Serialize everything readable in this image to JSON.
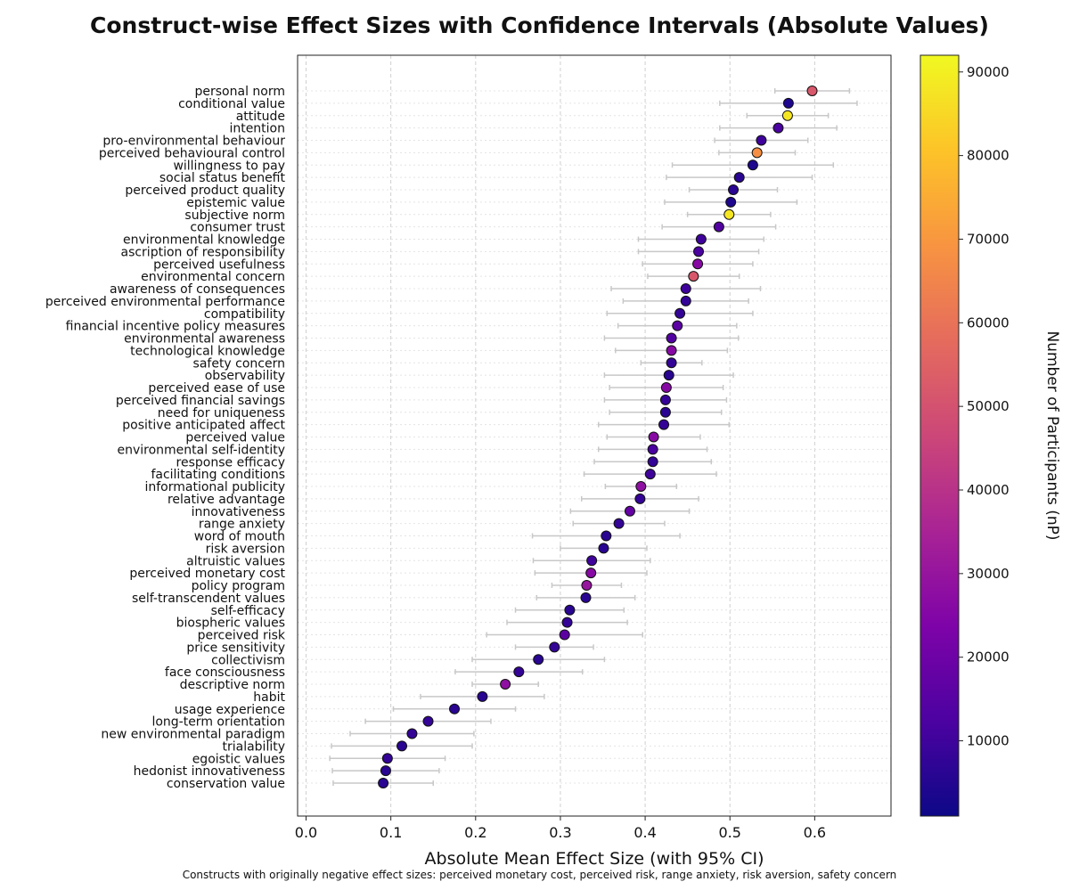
{
  "chart_data": {
    "type": "scatter",
    "title": "Construct-wise Effect Sizes with Confidence Intervals (Absolute Values)",
    "xlabel": "Absolute Mean Effect Size (with 95% CI)",
    "ylabel": "",
    "xlim": [
      -0.01,
      0.69
    ],
    "xticks": [
      "0.0",
      "0.1",
      "0.2",
      "0.3",
      "0.4",
      "0.5",
      "0.6"
    ],
    "grid": true,
    "colorbar": {
      "label": "Number of Participants (nP)",
      "min": 1000,
      "max": 92000,
      "ticks": [
        "10000",
        "20000",
        "30000",
        "40000",
        "50000",
        "60000",
        "70000",
        "80000",
        "90000"
      ],
      "colormap": "plasma"
    },
    "footnote": "Constructs with originally negative effect sizes: perceived monetary cost, perceived risk, range anxiety, risk aversion, safety concern",
    "points": [
      {
        "label": "personal norm",
        "value": 0.597,
        "ci": [
          0.553,
          0.641
        ],
        "n": 52000
      },
      {
        "label": "conditional value",
        "value": 0.569,
        "ci": [
          0.488,
          0.65
        ],
        "n": 4000
      },
      {
        "label": "attitude",
        "value": 0.568,
        "ci": [
          0.52,
          0.616
        ],
        "n": 88000
      },
      {
        "label": "intention",
        "value": 0.557,
        "ci": [
          0.488,
          0.626
        ],
        "n": 12000
      },
      {
        "label": "pro-environmental behaviour",
        "value": 0.537,
        "ci": [
          0.482,
          0.592
        ],
        "n": 10000
      },
      {
        "label": "perceived behavioural control",
        "value": 0.532,
        "ci": [
          0.487,
          0.577
        ],
        "n": 68000
      },
      {
        "label": "willingness to pay",
        "value": 0.527,
        "ci": [
          0.432,
          0.622
        ],
        "n": 4000
      },
      {
        "label": "social status benefit",
        "value": 0.511,
        "ci": [
          0.425,
          0.597
        ],
        "n": 6000
      },
      {
        "label": "perceived product quality",
        "value": 0.504,
        "ci": [
          0.452,
          0.556
        ],
        "n": 6000
      },
      {
        "label": "epistemic value",
        "value": 0.501,
        "ci": [
          0.423,
          0.579
        ],
        "n": 4000
      },
      {
        "label": "subjective norm",
        "value": 0.499,
        "ci": [
          0.45,
          0.548
        ],
        "n": 88000
      },
      {
        "label": "consumer trust",
        "value": 0.487,
        "ci": [
          0.42,
          0.554
        ],
        "n": 14000
      },
      {
        "label": "environmental knowledge",
        "value": 0.466,
        "ci": [
          0.392,
          0.54
        ],
        "n": 10000
      },
      {
        "label": "ascription of responsibility",
        "value": 0.463,
        "ci": [
          0.392,
          0.534
        ],
        "n": 12000
      },
      {
        "label": "perceived usefulness",
        "value": 0.462,
        "ci": [
          0.397,
          0.527
        ],
        "n": 26000
      },
      {
        "label": "environmental concern",
        "value": 0.457,
        "ci": [
          0.403,
          0.511
        ],
        "n": 52000
      },
      {
        "label": "awareness of consequences",
        "value": 0.448,
        "ci": [
          0.36,
          0.536
        ],
        "n": 10000
      },
      {
        "label": "perceived environmental performance",
        "value": 0.448,
        "ci": [
          0.374,
          0.522
        ],
        "n": 8000
      },
      {
        "label": "compatibility",
        "value": 0.441,
        "ci": [
          0.355,
          0.527
        ],
        "n": 8000
      },
      {
        "label": "financial incentive policy measures",
        "value": 0.438,
        "ci": [
          0.368,
          0.508
        ],
        "n": 16000
      },
      {
        "label": "environmental awareness",
        "value": 0.431,
        "ci": [
          0.352,
          0.51
        ],
        "n": 14000
      },
      {
        "label": "technological knowledge",
        "value": 0.431,
        "ci": [
          0.365,
          0.497
        ],
        "n": 26000
      },
      {
        "label": "safety concern",
        "value": 0.431,
        "ci": [
          0.395,
          0.467
        ],
        "n": 8000
      },
      {
        "label": "observability",
        "value": 0.428,
        "ci": [
          0.352,
          0.504
        ],
        "n": 6000
      },
      {
        "label": "perceived ease of use",
        "value": 0.425,
        "ci": [
          0.358,
          0.492
        ],
        "n": 26000
      },
      {
        "label": "perceived financial savings",
        "value": 0.424,
        "ci": [
          0.352,
          0.496
        ],
        "n": 8000
      },
      {
        "label": "need for uniqueness",
        "value": 0.424,
        "ci": [
          0.358,
          0.49
        ],
        "n": 6000
      },
      {
        "label": "positive anticipated affect",
        "value": 0.422,
        "ci": [
          0.345,
          0.499
        ],
        "n": 8000
      },
      {
        "label": "perceived value",
        "value": 0.41,
        "ci": [
          0.355,
          0.465
        ],
        "n": 26000
      },
      {
        "label": "environmental self-identity",
        "value": 0.409,
        "ci": [
          0.345,
          0.473
        ],
        "n": 12000
      },
      {
        "label": "response efficacy",
        "value": 0.409,
        "ci": [
          0.34,
          0.478
        ],
        "n": 8000
      },
      {
        "label": "facilitating conditions",
        "value": 0.406,
        "ci": [
          0.328,
          0.484
        ],
        "n": 10000
      },
      {
        "label": "informational publicity",
        "value": 0.395,
        "ci": [
          0.353,
          0.437
        ],
        "n": 28000
      },
      {
        "label": "relative advantage",
        "value": 0.394,
        "ci": [
          0.325,
          0.463
        ],
        "n": 8000
      },
      {
        "label": "innovativeness",
        "value": 0.382,
        "ci": [
          0.312,
          0.452
        ],
        "n": 18000
      },
      {
        "label": "range anxiety",
        "value": 0.369,
        "ci": [
          0.315,
          0.423
        ],
        "n": 8000
      },
      {
        "label": "word of mouth",
        "value": 0.354,
        "ci": [
          0.267,
          0.441
        ],
        "n": 6000
      },
      {
        "label": "risk aversion",
        "value": 0.351,
        "ci": [
          0.3,
          0.402
        ],
        "n": 6000
      },
      {
        "label": "altruistic values",
        "value": 0.337,
        "ci": [
          0.268,
          0.406
        ],
        "n": 10000
      },
      {
        "label": "perceived monetary cost",
        "value": 0.336,
        "ci": [
          0.27,
          0.402
        ],
        "n": 26000
      },
      {
        "label": "policy program",
        "value": 0.331,
        "ci": [
          0.29,
          0.372
        ],
        "n": 30000
      },
      {
        "label": "self-transcendent values",
        "value": 0.33,
        "ci": [
          0.272,
          0.388
        ],
        "n": 6000
      },
      {
        "label": "self-efficacy",
        "value": 0.311,
        "ci": [
          0.247,
          0.375
        ],
        "n": 6000
      },
      {
        "label": "biospheric values",
        "value": 0.308,
        "ci": [
          0.237,
          0.379
        ],
        "n": 8000
      },
      {
        "label": "perceived risk",
        "value": 0.305,
        "ci": [
          0.213,
          0.397
        ],
        "n": 16000
      },
      {
        "label": "price sensitivity",
        "value": 0.293,
        "ci": [
          0.247,
          0.339
        ],
        "n": 8000
      },
      {
        "label": "collectivism",
        "value": 0.274,
        "ci": [
          0.196,
          0.352
        ],
        "n": 6000
      },
      {
        "label": "face consciousness",
        "value": 0.251,
        "ci": [
          0.176,
          0.326
        ],
        "n": 8000
      },
      {
        "label": "descriptive norm",
        "value": 0.235,
        "ci": [
          0.196,
          0.274
        ],
        "n": 28000
      },
      {
        "label": "habit",
        "value": 0.208,
        "ci": [
          0.135,
          0.281
        ],
        "n": 6000
      },
      {
        "label": "usage experience",
        "value": 0.175,
        "ci": [
          0.103,
          0.247
        ],
        "n": 6000
      },
      {
        "label": "long-term orientation",
        "value": 0.144,
        "ci": [
          0.07,
          0.218
        ],
        "n": 8000
      },
      {
        "label": "new environmental paradigm",
        "value": 0.125,
        "ci": [
          0.052,
          0.198
        ],
        "n": 8000
      },
      {
        "label": "trialability",
        "value": 0.113,
        "ci": [
          0.03,
          0.196
        ],
        "n": 6000
      },
      {
        "label": "egoistic values",
        "value": 0.096,
        "ci": [
          0.028,
          0.164
        ],
        "n": 8000
      },
      {
        "label": "hedonist innovativeness",
        "value": 0.094,
        "ci": [
          0.031,
          0.157
        ],
        "n": 6000
      },
      {
        "label": "conservation value",
        "value": 0.091,
        "ci": [
          0.032,
          0.15
        ],
        "n": 6000
      }
    ]
  }
}
